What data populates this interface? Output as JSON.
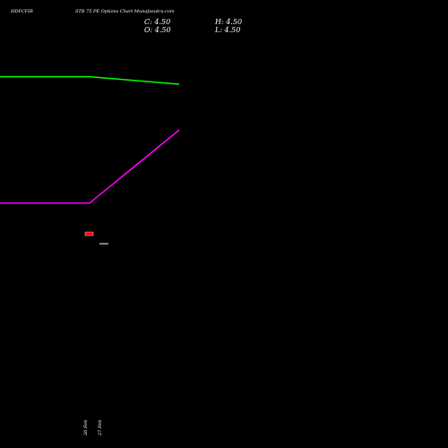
{
  "header": {
    "symbol": "HDFCFIR",
    "description": "STB 75 PE Options Chart Munafasutra.com",
    "close": "C: 4.50",
    "open": "O: 4.50",
    "high": "H: 4.50",
    "low": "L: 4.50"
  },
  "chart_data": {
    "type": "line",
    "background": "#000000",
    "categories": [
      "26 Feb",
      "27 Feb"
    ],
    "series": [
      {
        "color": "#00ff00",
        "values": [
          4.62,
          4.58
        ]
      },
      {
        "color": "#ff00ff",
        "values": [
          3.9,
          4.22
        ]
      }
    ],
    "candles": [
      {
        "date": "26 Feb",
        "open": 4.5,
        "high": 4.5,
        "low": 4.5,
        "close": 4.5,
        "color": "#ff0000"
      },
      {
        "date": "27 Feb",
        "open": 4.5,
        "high": 4.5,
        "low": 4.5,
        "close": 4.5,
        "color": "#ffffff"
      }
    ],
    "ylim": [
      3.5,
      4.7
    ],
    "grid": false
  }
}
